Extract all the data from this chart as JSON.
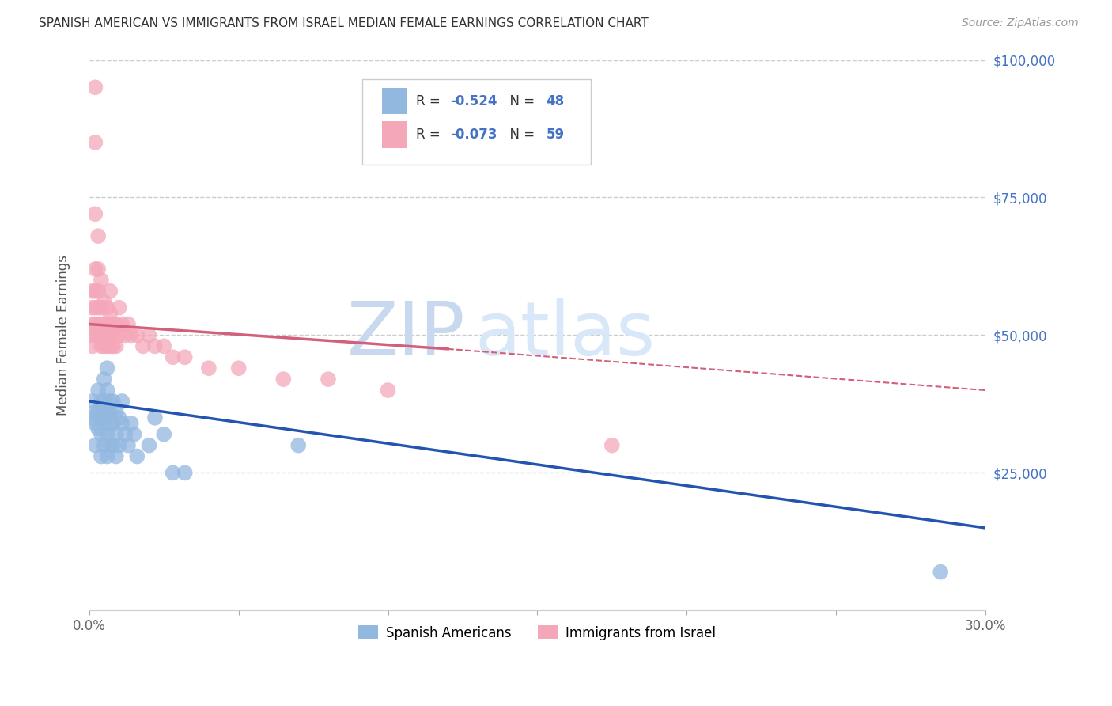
{
  "title": "SPANISH AMERICAN VS IMMIGRANTS FROM ISRAEL MEDIAN FEMALE EARNINGS CORRELATION CHART",
  "source": "Source: ZipAtlas.com",
  "ylabel": "Median Female Earnings",
  "xlim": [
    0,
    0.3
  ],
  "ylim": [
    0,
    100000
  ],
  "blue_color": "#92b8e0",
  "pink_color": "#f4a7b9",
  "blue_line_color": "#2355b0",
  "pink_line_color": "#d45f7a",
  "watermark_zip": "ZIP",
  "watermark_atlas": "atlas",
  "legend_label1": "Spanish Americans",
  "legend_label2": "Immigrants from Israel",
  "blue_R": "-0.524",
  "blue_N": "48",
  "pink_R": "-0.073",
  "pink_N": "59",
  "blue_line_x0": 0.0,
  "blue_line_y0": 38000,
  "blue_line_x1": 0.3,
  "blue_line_y1": 15000,
  "pink_line_solid_x0": 0.0,
  "pink_line_solid_y0": 52000,
  "pink_line_solid_x1": 0.12,
  "pink_line_solid_y1": 47500,
  "pink_line_dashed_x0": 0.12,
  "pink_line_dashed_y0": 47500,
  "pink_line_dashed_x1": 0.3,
  "pink_line_dashed_y1": 40000,
  "spanish_americans_x": [
    0.001,
    0.001,
    0.002,
    0.002,
    0.002,
    0.003,
    0.003,
    0.003,
    0.004,
    0.004,
    0.004,
    0.004,
    0.005,
    0.005,
    0.005,
    0.005,
    0.005,
    0.006,
    0.006,
    0.006,
    0.006,
    0.006,
    0.007,
    0.007,
    0.007,
    0.007,
    0.008,
    0.008,
    0.008,
    0.009,
    0.009,
    0.009,
    0.01,
    0.01,
    0.011,
    0.011,
    0.012,
    0.013,
    0.014,
    0.015,
    0.016,
    0.02,
    0.022,
    0.025,
    0.028,
    0.032,
    0.07,
    0.285
  ],
  "spanish_americans_y": [
    38000,
    35000,
    36000,
    34000,
    30000,
    33000,
    40000,
    36000,
    38000,
    35000,
    32000,
    28000,
    42000,
    38000,
    36000,
    34000,
    30000,
    44000,
    40000,
    36000,
    32000,
    28000,
    38000,
    36000,
    34000,
    30000,
    38000,
    34000,
    30000,
    36000,
    32000,
    28000,
    35000,
    30000,
    38000,
    34000,
    32000,
    30000,
    34000,
    32000,
    28000,
    30000,
    35000,
    32000,
    25000,
    25000,
    30000,
    7000
  ],
  "israel_x": [
    0.001,
    0.001,
    0.001,
    0.001,
    0.001,
    0.002,
    0.002,
    0.002,
    0.002,
    0.002,
    0.002,
    0.002,
    0.002,
    0.003,
    0.003,
    0.003,
    0.003,
    0.003,
    0.003,
    0.004,
    0.004,
    0.004,
    0.004,
    0.004,
    0.005,
    0.005,
    0.005,
    0.005,
    0.006,
    0.006,
    0.006,
    0.007,
    0.007,
    0.007,
    0.007,
    0.008,
    0.008,
    0.008,
    0.009,
    0.009,
    0.01,
    0.01,
    0.011,
    0.012,
    0.013,
    0.014,
    0.016,
    0.018,
    0.02,
    0.022,
    0.025,
    0.028,
    0.032,
    0.04,
    0.05,
    0.065,
    0.08,
    0.1,
    0.175
  ],
  "israel_y": [
    58000,
    55000,
    52000,
    50000,
    48000,
    95000,
    85000,
    72000,
    62000,
    58000,
    55000,
    52000,
    50000,
    68000,
    62000,
    58000,
    55000,
    52000,
    50000,
    60000,
    55000,
    52000,
    50000,
    48000,
    56000,
    52000,
    50000,
    48000,
    55000,
    52000,
    48000,
    58000,
    54000,
    50000,
    48000,
    52000,
    50000,
    48000,
    52000,
    48000,
    55000,
    50000,
    52000,
    50000,
    52000,
    50000,
    50000,
    48000,
    50000,
    48000,
    48000,
    46000,
    46000,
    44000,
    44000,
    42000,
    42000,
    40000,
    30000
  ]
}
